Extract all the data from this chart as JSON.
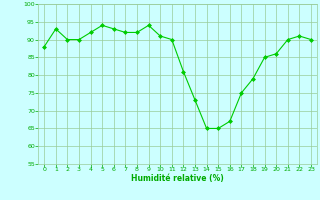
{
  "x": [
    0,
    1,
    2,
    3,
    4,
    5,
    6,
    7,
    8,
    9,
    10,
    11,
    12,
    13,
    14,
    15,
    16,
    17,
    18,
    19,
    20,
    21,
    22,
    23
  ],
  "y": [
    88,
    93,
    90,
    90,
    92,
    94,
    93,
    92,
    92,
    94,
    91,
    90,
    81,
    73,
    65,
    65,
    67,
    75,
    79,
    85,
    86,
    90,
    91,
    90
  ],
  "line_color": "#00cc00",
  "marker": "D",
  "marker_size": 2.0,
  "bg_color": "#ccffff",
  "grid_color": "#99cc99",
  "xlabel": "Humidité relative (%)",
  "xlabel_color": "#00aa00",
  "tick_color": "#00aa00",
  "ylim": [
    55,
    100
  ],
  "xlim": [
    -0.5,
    23.5
  ],
  "yticks": [
    55,
    60,
    65,
    70,
    75,
    80,
    85,
    90,
    95,
    100
  ],
  "xticks": [
    0,
    1,
    2,
    3,
    4,
    5,
    6,
    7,
    8,
    9,
    10,
    11,
    12,
    13,
    14,
    15,
    16,
    17,
    18,
    19,
    20,
    21,
    22,
    23
  ]
}
